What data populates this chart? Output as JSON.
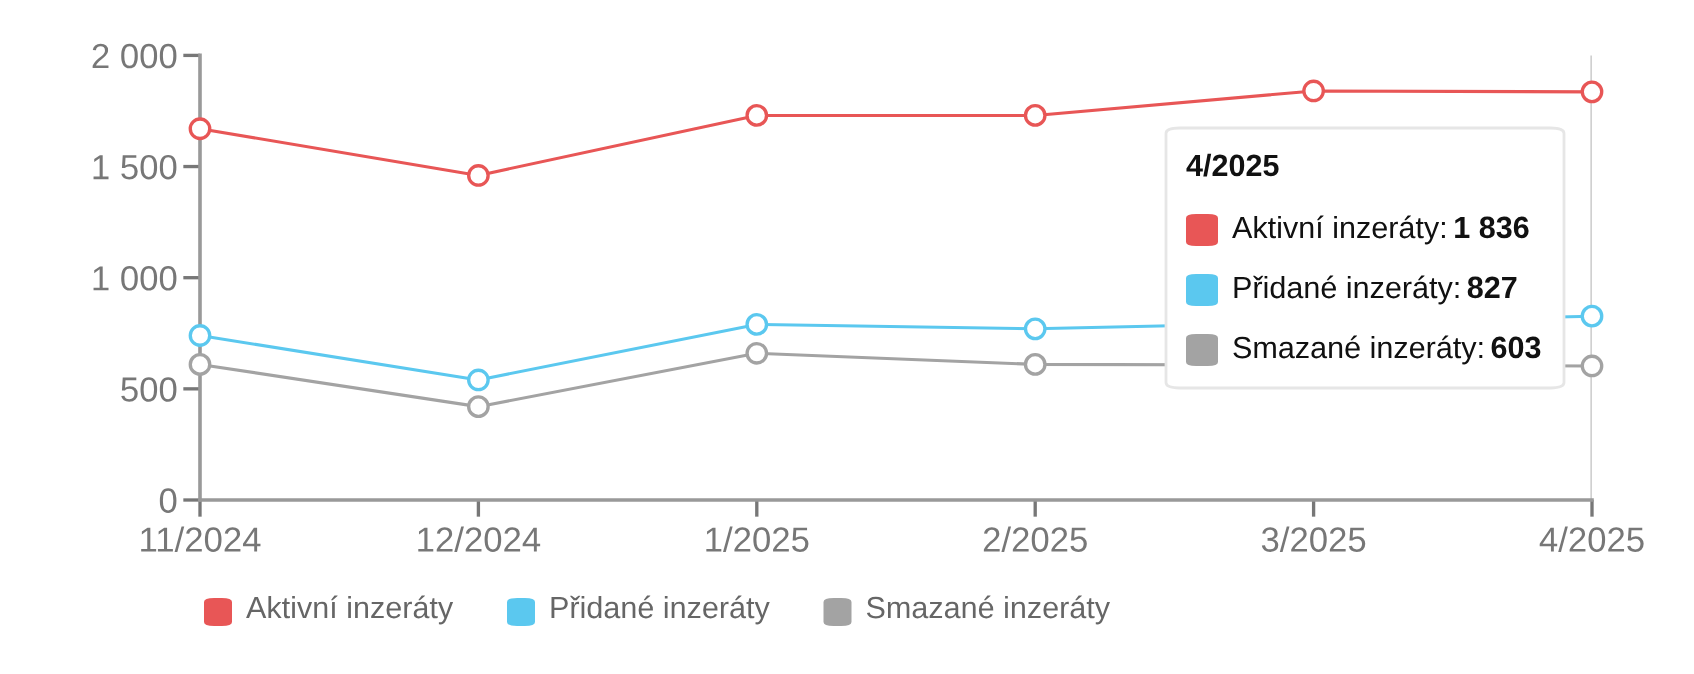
{
  "chart_data": {
    "type": "line",
    "categories": [
      "11/2024",
      "12/2024",
      "1/2025",
      "2/2025",
      "3/2025",
      "4/2025"
    ],
    "series": [
      {
        "name": "Aktivní inzeráty",
        "color": "#e85656",
        "values": [
          1670,
          1460,
          1730,
          1730,
          1840,
          1836
        ]
      },
      {
        "name": "Přidané inzeráty",
        "color": "#5bc8ef",
        "values": [
          740,
          540,
          790,
          770,
          null,
          827
        ]
      },
      {
        "name": "Smazané inzeráty",
        "color": "#a3a3a3",
        "values": [
          610,
          420,
          660,
          610,
          null,
          603
        ]
      }
    ],
    "ylim": [
      0,
      2000
    ],
    "yticks": [
      {
        "value": 0,
        "label": "0"
      },
      {
        "value": 500,
        "label": "500"
      },
      {
        "value": 1000,
        "label": "1 000"
      },
      {
        "value": 1500,
        "label": "1 500"
      },
      {
        "value": 2000,
        "label": "2 000"
      }
    ],
    "ref_lines": [
      {
        "axis": "x",
        "value": "4/2025",
        "color": "#d0d0d0"
      }
    ],
    "annotations": [
      "4/2025",
      "Aktivní inzeráty: 1 836",
      "Přidané inzeráty: 827",
      "Smazané inzeráty: 603"
    ],
    "marker": "circle",
    "line_style": "solid",
    "grid": false,
    "legend": "bottom"
  }
}
